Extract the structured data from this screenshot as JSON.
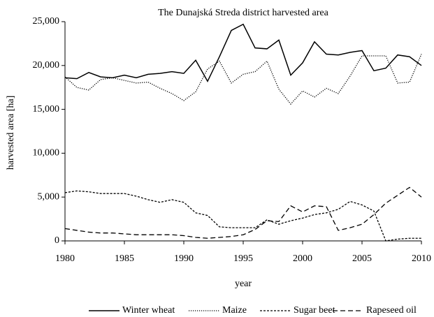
{
  "chart_data": {
    "type": "line",
    "title": "The Dunajská Streda district harvested area",
    "xlabel": "year",
    "ylabel": "harvested area [ha]",
    "x": [
      1980,
      1981,
      1982,
      1983,
      1984,
      1985,
      1986,
      1987,
      1988,
      1989,
      1990,
      1991,
      1992,
      1993,
      1994,
      1995,
      1996,
      1997,
      1998,
      1999,
      2000,
      2001,
      2002,
      2003,
      2004,
      2005,
      2006,
      2007,
      2008,
      2009,
      2010
    ],
    "series": [
      {
        "name": "Winter wheat",
        "color": "#000000",
        "style": "solid",
        "values": [
          18600,
          18500,
          19200,
          18700,
          18600,
          18900,
          18600,
          19000,
          19100,
          19300,
          19100,
          20600,
          18200,
          21000,
          24000,
          24700,
          22000,
          21900,
          22900,
          18900,
          20300,
          22700,
          21300,
          21200,
          21500,
          21700,
          19400,
          19700,
          21200,
          21000,
          20000
        ]
      },
      {
        "name": "Maize",
        "color": "#000000",
        "style": "dotted",
        "values": [
          18700,
          17500,
          17200,
          18400,
          18600,
          18300,
          18000,
          18100,
          17400,
          16800,
          16000,
          17000,
          19600,
          20500,
          18000,
          19000,
          19300,
          20500,
          17300,
          15600,
          17100,
          16400,
          17400,
          16800,
          18800,
          21100,
          21100,
          21100,
          18000,
          18100,
          21300
        ]
      },
      {
        "name": "Sugar beet",
        "color": "#000000",
        "style": "short-dash",
        "values": [
          5500,
          5700,
          5600,
          5400,
          5400,
          5400,
          5100,
          4700,
          4400,
          4700,
          4400,
          3200,
          2900,
          1600,
          1500,
          1500,
          1500,
          2400,
          1900,
          2300,
          2600,
          3000,
          3200,
          3600,
          4500,
          4100,
          3400,
          0,
          200,
          300,
          300
        ]
      },
      {
        "name": "Rapeseed oil",
        "color": "#000000",
        "style": "long-dash",
        "values": [
          1400,
          1200,
          1000,
          900,
          900,
          800,
          700,
          700,
          700,
          700,
          600,
          400,
          300,
          400,
          500,
          700,
          1300,
          2300,
          2200,
          4000,
          3300,
          4000,
          3900,
          1200,
          1500,
          1900,
          3000,
          4300,
          5200,
          6100,
          5000
        ]
      }
    ],
    "xlim": [
      1980,
      2010
    ],
    "xticks": [
      1980,
      1985,
      1990,
      1995,
      2000,
      2005,
      2010
    ],
    "ylim": [
      0,
      25000
    ],
    "yticks": [
      0,
      {
        "value": 5000,
        "label": "5,000"
      },
      {
        "value": 10000,
        "label": "10,000"
      },
      {
        "value": 15000,
        "label": "15,000"
      },
      {
        "value": 20000,
        "label": "20,000"
      },
      {
        "value": 25000,
        "label": "25,000"
      }
    ],
    "grid": false,
    "legend": "bottom"
  }
}
